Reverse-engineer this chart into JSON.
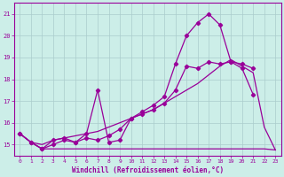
{
  "xlabel": "Windchill (Refroidissement éolien,°C)",
  "background_color": "#cceee8",
  "line_color": "#990099",
  "grid_color": "#aacccc",
  "x_ticks": [
    0,
    1,
    2,
    3,
    4,
    5,
    6,
    7,
    8,
    9,
    10,
    11,
    12,
    13,
    14,
    15,
    16,
    17,
    18,
    19,
    20,
    21,
    22,
    23
  ],
  "ylim": [
    14.5,
    21.5
  ],
  "xlim": [
    -0.5,
    23.5
  ],
  "yticks": [
    15,
    16,
    17,
    18,
    19,
    20,
    21
  ],
  "line_flat_x": [
    0,
    1,
    2,
    3,
    4,
    5,
    6,
    7,
    8,
    9,
    10,
    11,
    12,
    13,
    14,
    15,
    16,
    17,
    18,
    19,
    20,
    21,
    22,
    23
  ],
  "line_flat_y": [
    15.5,
    15.1,
    14.8,
    14.8,
    14.8,
    14.8,
    14.8,
    14.8,
    14.8,
    14.8,
    14.8,
    14.8,
    14.8,
    14.8,
    14.8,
    14.8,
    14.8,
    14.8,
    14.8,
    14.8,
    14.8,
    14.8,
    14.8,
    14.75
  ],
  "line_diag1_x": [
    0,
    1,
    2,
    3,
    4,
    5,
    6,
    7,
    8,
    9,
    10,
    11,
    12,
    13,
    14,
    15,
    16,
    17,
    18,
    19,
    20,
    21,
    22,
    23
  ],
  "line_diag1_y": [
    15.5,
    15.1,
    15.0,
    15.2,
    15.3,
    15.4,
    15.5,
    15.6,
    15.8,
    16.0,
    16.2,
    16.4,
    16.6,
    16.9,
    17.2,
    17.5,
    17.8,
    18.2,
    18.6,
    18.9,
    18.6,
    18.3,
    15.8,
    14.75
  ],
  "line_zigzag_x": [
    0,
    1,
    2,
    3,
    4,
    5,
    6,
    7,
    8,
    9,
    10,
    11,
    12,
    13,
    14,
    15,
    16,
    17,
    18,
    19,
    20,
    21
  ],
  "line_zigzag_y": [
    15.5,
    15.1,
    14.8,
    15.2,
    15.3,
    15.1,
    15.5,
    17.5,
    15.1,
    15.2,
    16.2,
    16.4,
    16.6,
    16.9,
    17.5,
    18.6,
    18.5,
    18.8,
    18.7,
    18.8,
    18.7,
    18.5
  ],
  "line_main_x": [
    0,
    1,
    2,
    3,
    4,
    5,
    6,
    7,
    8,
    9,
    10,
    11,
    12,
    13,
    14,
    15,
    16,
    17,
    18,
    19,
    20,
    21
  ],
  "line_main_y": [
    15.5,
    15.1,
    14.8,
    15.0,
    15.2,
    15.1,
    15.3,
    15.2,
    15.4,
    15.7,
    16.2,
    16.5,
    16.8,
    17.2,
    18.7,
    20.0,
    20.6,
    21.0,
    20.5,
    18.8,
    18.5,
    17.3
  ]
}
